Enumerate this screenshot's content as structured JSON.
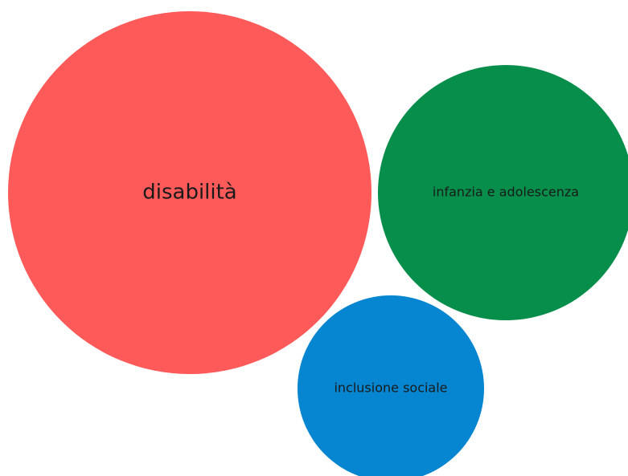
{
  "chart_data": {
    "type": "bubble",
    "title": "",
    "bubbles": [
      {
        "label": "disabilità",
        "color": "#FF5A5A",
        "relative_size": 1.0
      },
      {
        "label": "infanzia e adolescenza",
        "color": "#078E4A",
        "relative_size": 0.49
      },
      {
        "label": "inclusione sociale",
        "color": "#0685D1",
        "relative_size": 0.26
      }
    ]
  }
}
